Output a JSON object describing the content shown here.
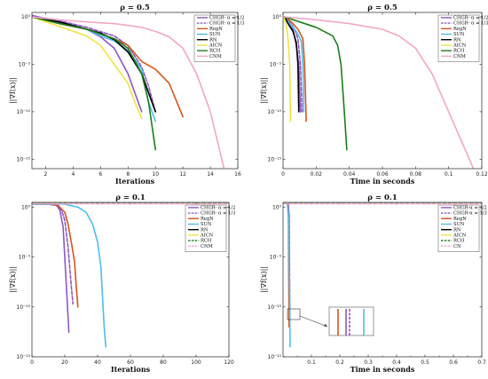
{
  "chart_data": [
    {
      "type": "line",
      "title": "ρ = 0.5",
      "xlabel": "Iterations",
      "ylabel": "||∇f(x)||",
      "xlim": [
        1,
        16
      ],
      "ylim": [
        1e-16,
        3
      ],
      "xticks": [
        2,
        4,
        6,
        8,
        10,
        12,
        14,
        16
      ],
      "yscale": "log",
      "yticks": [
        {
          "v": 1,
          "label": "10⁰"
        },
        {
          "v": 1e-05,
          "label": "10⁻⁵"
        },
        {
          "v": 1e-10,
          "label": "10⁻¹⁰"
        },
        {
          "v": 1e-15,
          "label": "10⁻¹⁵"
        }
      ],
      "legend_position": "top-right",
      "series": [
        {
          "name": "CHGR- α = 1/2",
          "color": "#8e57c7",
          "dash": "solid",
          "points": [
            [
              1,
              1.5
            ],
            [
              3,
              0.3
            ],
            [
              5,
              0.05
            ],
            [
              6,
              0.008
            ],
            [
              7,
              0.0005
            ],
            [
              8,
              1e-06
            ],
            [
              9,
              1e-10
            ]
          ]
        },
        {
          "name": "CHGR- α = 1/3",
          "color": "#8e57c7",
          "dash": "dashed",
          "points": [
            [
              1,
              1.3
            ],
            [
              3,
              0.4
            ],
            [
              5,
              0.08
            ],
            [
              7,
              0.01
            ],
            [
              8,
              0.001
            ],
            [
              9,
              5e-06
            ],
            [
              9.5,
              5e-08
            ],
            [
              10,
              1e-10
            ]
          ]
        },
        {
          "name": "RegN",
          "color": "#d95319",
          "dash": "solid",
          "points": [
            [
              1,
              1
            ],
            [
              3,
              0.2
            ],
            [
              5,
              0.05
            ],
            [
              7,
              0.005
            ],
            [
              8,
              0.001
            ],
            [
              9,
              2e-05
            ],
            [
              10,
              3e-06
            ],
            [
              11,
              1e-07
            ],
            [
              12,
              3e-11
            ]
          ]
        },
        {
          "name": "SUN",
          "color": "#4dbeee",
          "dash": "solid",
          "points": [
            [
              1,
              1
            ],
            [
              3,
              0.3
            ],
            [
              5,
              0.05
            ],
            [
              6,
              0.01
            ],
            [
              7,
              0.003
            ],
            [
              8,
              0.0003
            ],
            [
              9,
              3e-06
            ],
            [
              9.5,
              1e-09
            ],
            [
              10,
              1e-11
            ]
          ]
        },
        {
          "name": "RN",
          "color": "#000000",
          "dash": "solid",
          "points": [
            [
              1,
              1
            ],
            [
              3,
              0.3
            ],
            [
              5,
              0.05
            ],
            [
              6,
              0.02
            ],
            [
              7,
              0.004
            ],
            [
              8,
              0.0002
            ],
            [
              9,
              1e-06
            ],
            [
              9.5,
              1e-08
            ],
            [
              10,
              1e-10
            ]
          ]
        },
        {
          "name": "AICN",
          "color": "#f0e442",
          "dash": "solid",
          "points": [
            [
              1,
              1
            ],
            [
              3,
              0.1
            ],
            [
              5,
              0.01
            ],
            [
              6,
              0.001
            ],
            [
              7,
              1e-05
            ],
            [
              8,
              1e-07
            ],
            [
              8.5,
              1e-09
            ],
            [
              9,
              2e-11
            ]
          ]
        },
        {
          "name": "RCH",
          "color": "#1a7e1a",
          "dash": "solid",
          "points": [
            [
              1,
              1
            ],
            [
              3,
              0.2
            ],
            [
              5,
              0.05
            ],
            [
              7,
              0.005
            ],
            [
              8,
              0.0005
            ],
            [
              9,
              1e-06
            ],
            [
              9.5,
              1e-09
            ],
            [
              10,
              1e-14
            ]
          ]
        },
        {
          "name": "CNM",
          "color": "#f4a6c6",
          "dash": "solid",
          "points": [
            [
              1,
              1
            ],
            [
              3,
              0.5
            ],
            [
              5,
              0.3
            ],
            [
              7,
              0.2
            ],
            [
              9,
              0.08
            ],
            [
              10,
              0.03
            ],
            [
              11,
              0.008
            ],
            [
              12,
              0.0005
            ],
            [
              13,
              1e-06
            ],
            [
              14,
              1e-10
            ],
            [
              15,
              1e-16
            ]
          ]
        }
      ]
    },
    {
      "type": "line",
      "title": "ρ = 0.5",
      "xlabel": "Time in seconds",
      "ylabel": "||∇f(x)||",
      "xlim": [
        0,
        0.12
      ],
      "ylim": [
        1e-16,
        3
      ],
      "xticks": [
        0,
        0.02,
        0.04,
        0.06,
        0.08,
        0.1,
        0.12
      ],
      "yscale": "log",
      "yticks": [
        {
          "v": 1,
          "label": "10⁰"
        },
        {
          "v": 1e-05,
          "label": "10⁻⁵"
        },
        {
          "v": 1e-10,
          "label": "10⁻¹⁰"
        },
        {
          "v": 1e-15,
          "label": "10⁻¹⁵"
        }
      ],
      "legend_position": "top-right",
      "series": [
        {
          "name": "CHGR- α = 1/2",
          "color": "#8e57c7",
          "dash": "solid",
          "points": [
            [
              0.001,
              1
            ],
            [
              0.003,
              0.3
            ],
            [
              0.006,
              0.05
            ],
            [
              0.008,
              0.001
            ],
            [
              0.0095,
              1e-05
            ],
            [
              0.0105,
              1e-10
            ]
          ]
        },
        {
          "name": "CHGR- α = 1/3",
          "color": "#8e57c7",
          "dash": "dashed",
          "points": [
            [
              0.001,
              1
            ],
            [
              0.004,
              0.3
            ],
            [
              0.007,
              0.05
            ],
            [
              0.009,
              0.005
            ],
            [
              0.0105,
              1e-05
            ],
            [
              0.0115,
              1e-10
            ]
          ]
        },
        {
          "name": "RegN",
          "color": "#d95319",
          "dash": "solid",
          "points": [
            [
              0.001,
              1
            ],
            [
              0.005,
              0.3
            ],
            [
              0.009,
              0.05
            ],
            [
              0.012,
              0.005
            ],
            [
              0.013,
              1e-05
            ],
            [
              0.014,
              1e-11
            ]
          ]
        },
        {
          "name": "SUN",
          "color": "#4dbeee",
          "dash": "solid",
          "points": [
            [
              0.001,
              1
            ],
            [
              0.004,
              0.2
            ],
            [
              0.008,
              0.03
            ],
            [
              0.011,
              0.003
            ],
            [
              0.012,
              1e-05
            ],
            [
              0.0125,
              1e-10
            ]
          ]
        },
        {
          "name": "RN",
          "color": "#000000",
          "dash": "solid",
          "points": [
            [
              0.001,
              1
            ],
            [
              0.003,
              0.2
            ],
            [
              0.006,
              0.03
            ],
            [
              0.008,
              0.002
            ],
            [
              0.009,
              1e-05
            ],
            [
              0.0095,
              1e-10
            ]
          ]
        },
        {
          "name": "AICN",
          "color": "#f0e442",
          "dash": "solid",
          "points": [
            [
              0.0005,
              1
            ],
            [
              0.002,
              0.1
            ],
            [
              0.003,
              0.005
            ],
            [
              0.004,
              1e-05
            ],
            [
              0.0045,
              1e-11
            ]
          ]
        },
        {
          "name": "RCH",
          "color": "#1a7e1a",
          "dash": "solid",
          "points": [
            [
              0.001,
              1
            ],
            [
              0.01,
              0.3
            ],
            [
              0.02,
              0.08
            ],
            [
              0.03,
              0.01
            ],
            [
              0.033,
              0.001
            ],
            [
              0.035,
              1e-05
            ],
            [
              0.037,
              1e-10
            ],
            [
              0.0385,
              1e-14
            ]
          ]
        },
        {
          "name": "CNM",
          "color": "#f4a6c6",
          "dash": "solid",
          "points": [
            [
              0.001,
              1
            ],
            [
              0.02,
              0.5
            ],
            [
              0.04,
              0.2
            ],
            [
              0.06,
              0.05
            ],
            [
              0.07,
              0.01
            ],
            [
              0.08,
              0.0005
            ],
            [
              0.09,
              1e-06
            ],
            [
              0.1,
              1e-10
            ],
            [
              0.11,
              1e-14
            ],
            [
              0.115,
              1e-16
            ]
          ]
        }
      ]
    },
    {
      "type": "line",
      "title": "ρ = 0.1",
      "xlabel": "Iterations",
      "ylabel": "||∇f(x)||",
      "xlim": [
        0,
        120
      ],
      "ylim": [
        1e-15,
        3
      ],
      "xticks": [
        0,
        20,
        40,
        60,
        80,
        100,
        120
      ],
      "yscale": "log",
      "yticks": [
        {
          "v": 1,
          "label": "10⁰"
        },
        {
          "v": 1e-05,
          "label": "10⁻⁵"
        },
        {
          "v": 1e-10,
          "label": "10⁻¹⁰"
        },
        {
          "v": 1e-15,
          "label": "10⁻¹⁵"
        }
      ],
      "legend_position": "top-right",
      "series": [
        {
          "name": "CHGR- α = 1/2",
          "color": "#8e57c7",
          "dash": "solid",
          "points": [
            [
              1,
              2
            ],
            [
              10,
              2
            ],
            [
              15,
              1.5
            ],
            [
              17,
              0.5
            ],
            [
              19,
              0.01
            ],
            [
              20,
              1e-05
            ],
            [
              21,
              1e-08
            ],
            [
              22,
              1e-11
            ],
            [
              22.5,
              3e-13
            ]
          ]
        },
        {
          "name": "CHGR- α = 1/3",
          "color": "#8e57c7",
          "dash": "dashed",
          "points": [
            [
              1,
              2
            ],
            [
              10,
              2
            ],
            [
              15,
              1.5
            ],
            [
              18,
              0.5
            ],
            [
              20,
              0.05
            ],
            [
              22,
              0.0001
            ],
            [
              23,
              1e-06
            ],
            [
              24,
              1e-08
            ],
            [
              25,
              2e-10
            ]
          ]
        },
        {
          "name": "RegN",
          "color": "#d95319",
          "dash": "solid",
          "points": [
            [
              1,
              2
            ],
            [
              10,
              2
            ],
            [
              16,
              1.5
            ],
            [
              20,
              0.3
            ],
            [
              22,
              0.02
            ],
            [
              24,
              0.0003
            ],
            [
              26,
              3e-06
            ],
            [
              27,
              1e-08
            ],
            [
              28,
              1e-10
            ]
          ]
        },
        {
          "name": "SUN",
          "color": "#4dbeee",
          "dash": "solid",
          "points": [
            [
              1,
              2
            ],
            [
              10,
              2
            ],
            [
              20,
              2
            ],
            [
              28,
              1
            ],
            [
              33,
              0.3
            ],
            [
              37,
              0.02
            ],
            [
              40,
              0.0003
            ],
            [
              42,
              1e-06
            ],
            [
              43,
              1e-09
            ],
            [
              44,
              1e-12
            ],
            [
              45,
              1e-14
            ]
          ]
        },
        {
          "name": "RN",
          "color": "#000000",
          "dash": "solid",
          "points": []
        },
        {
          "name": "AICN",
          "color": "#f0e442",
          "dash": "solid",
          "points": []
        },
        {
          "name": "RCH",
          "color": "#1a7e1a",
          "dash": "dashed",
          "points": [
            [
              0,
              3
            ],
            [
              120,
              3
            ]
          ]
        },
        {
          "name": "CNM",
          "color": "#f4a6c6",
          "dash": "dashed",
          "points": [
            [
              0,
              2.2
            ],
            [
              120,
              2.2
            ]
          ]
        }
      ]
    },
    {
      "type": "line",
      "title": "ρ = 0.1",
      "xlabel": "Time in seconds",
      "ylabel": "||∇f(x)||",
      "xlim": [
        0,
        0.7
      ],
      "ylim": [
        1e-15,
        3
      ],
      "xticks": [
        0.1,
        0.2,
        0.3,
        0.4,
        0.5,
        0.6,
        0.7
      ],
      "xticklabels": [
        "0.1",
        "0.2",
        "0.3",
        "0.4",
        "0.5",
        "0.6",
        "0.7"
      ],
      "extra_xticks": [
        0.05,
        0.15,
        0.25,
        0.35,
        0.45,
        0.55,
        0.65
      ],
      "yscale": "log",
      "yticks": [
        {
          "v": 1,
          "label": "10⁰"
        },
        {
          "v": 1e-05,
          "label": "10⁻⁵"
        },
        {
          "v": 1e-10,
          "label": "10⁻¹⁰"
        },
        {
          "v": 1e-15,
          "label": "10⁻¹⁵"
        }
      ],
      "legend_position": "top-right",
      "series": [
        {
          "name": "CHGR-α = 1/2",
          "color": "#8e57c7",
          "dash": "solid",
          "points": [
            [
              0.018,
              2
            ],
            [
              0.021,
              0.1
            ],
            [
              0.022,
              1e-06
            ],
            [
              0.023,
              1e-12
            ]
          ]
        },
        {
          "name": "CHGR-α = 1/3",
          "color": "#8e57c7",
          "dash": "dashed",
          "points": [
            [
              0.018,
              2
            ],
            [
              0.022,
              0.1
            ],
            [
              0.023,
              1e-06
            ],
            [
              0.024,
              1e-11
            ]
          ]
        },
        {
          "name": "RegN",
          "color": "#d95319",
          "dash": "solid",
          "points": [
            [
              0.016,
              2
            ],
            [
              0.019,
              0.1
            ],
            [
              0.02,
              1e-06
            ],
            [
              0.021,
              1e-12
            ]
          ]
        },
        {
          "name": "SUN",
          "color": "#4dbeee",
          "dash": "solid",
          "points": [
            [
              0.015,
              2
            ],
            [
              0.02,
              0.1
            ],
            [
              0.022,
              1e-06
            ],
            [
              0.025,
              1e-14
            ]
          ]
        },
        {
          "name": "RN",
          "color": "#000000",
          "dash": "solid",
          "points": []
        },
        {
          "name": "AICN",
          "color": "#f0e442",
          "dash": "solid",
          "points": []
        },
        {
          "name": "RCH",
          "color": "#1a7e1a",
          "dash": "dashed",
          "points": [
            [
              0,
              3
            ],
            [
              0.7,
              3
            ]
          ]
        },
        {
          "name": "CN",
          "color": "#f4a6c6",
          "dash": "dashed",
          "points": [
            [
              0,
              2.2
            ],
            [
              0.7,
              2.2
            ]
          ]
        }
      ]
    }
  ]
}
